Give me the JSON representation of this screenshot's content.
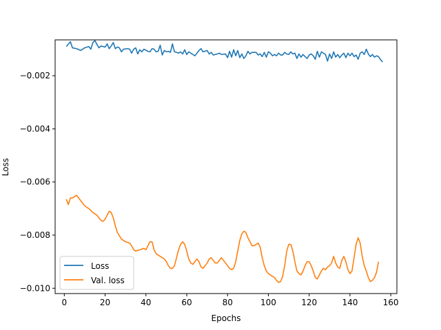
{
  "chart_data": {
    "type": "line",
    "title": "",
    "xlabel": "Epochs",
    "ylabel": "Loss",
    "xlim": [
      -4.5,
      163
    ],
    "ylim": [
      -0.0102,
      -0.00065
    ],
    "x_ticks": [
      0,
      20,
      40,
      60,
      80,
      100,
      120,
      140,
      160
    ],
    "x_tick_labels": [
      "0",
      "20",
      "40",
      "60",
      "80",
      "100",
      "120",
      "140",
      "160"
    ],
    "y_ticks": [
      -0.002,
      -0.004,
      -0.006,
      -0.008,
      -0.01
    ],
    "y_tick_labels": [
      "−0.002",
      "−0.004",
      "−0.006",
      "−0.008",
      "−0.010"
    ],
    "grid": false,
    "legend_position": "lower-left",
    "series": [
      {
        "name": "Loss",
        "color": "#1f77b4",
        "points": [
          [
            1,
            -0.0009
          ],
          [
            3,
            -0.00072
          ],
          [
            4,
            -0.00095
          ],
          [
            6,
            -0.00098
          ],
          [
            8,
            -0.00105
          ],
          [
            10,
            -0.00095
          ],
          [
            12,
            -0.0009
          ],
          [
            13,
            -0.001
          ],
          [
            14,
            -0.00075
          ],
          [
            15,
            -0.00068
          ],
          [
            16,
            -0.00082
          ],
          [
            17,
            -0.00095
          ],
          [
            18,
            -0.00088
          ],
          [
            20,
            -0.00092
          ],
          [
            21,
            -0.0008
          ],
          [
            22,
            -0.00098
          ],
          [
            23,
            -0.00088
          ],
          [
            24,
            -0.00075
          ],
          [
            25,
            -0.00098
          ],
          [
            26,
            -0.00092
          ],
          [
            27,
            -0.00095
          ],
          [
            28,
            -0.0011
          ],
          [
            29,
            -0.001
          ],
          [
            31,
            -0.00098
          ],
          [
            32,
            -0.001
          ],
          [
            33,
            -0.00115
          ],
          [
            34,
            -0.001
          ],
          [
            35,
            -0.00095
          ],
          [
            36,
            -0.00118
          ],
          [
            37,
            -0.00102
          ],
          [
            38,
            -0.0011
          ],
          [
            39,
            -0.001
          ],
          [
            41,
            -0.00108
          ],
          [
            42,
            -0.0011
          ],
          [
            43,
            -0.00098
          ],
          [
            44,
            -0.001
          ],
          [
            45,
            -0.0011
          ],
          [
            46,
            -0.00108
          ],
          [
            47,
            -0.00085
          ],
          [
            48,
            -0.00122
          ],
          [
            49,
            -0.00105
          ],
          [
            50,
            -0.0011
          ],
          [
            51,
            -0.00108
          ],
          [
            52,
            -0.00112
          ],
          [
            53,
            -0.0008
          ],
          [
            54,
            -0.0011
          ],
          [
            55,
            -0.00112
          ],
          [
            56,
            -0.00115
          ],
          [
            57,
            -0.0011
          ],
          [
            58,
            -0.00118
          ],
          [
            59,
            -0.00102
          ],
          [
            60,
            -0.0012
          ],
          [
            61,
            -0.0011
          ],
          [
            62,
            -0.00115
          ],
          [
            63,
            -0.0012
          ],
          [
            64,
            -0.00125
          ],
          [
            66,
            -0.00105
          ],
          [
            67,
            -0.00098
          ],
          [
            68,
            -0.0011
          ],
          [
            70,
            -0.00105
          ],
          [
            71,
            -0.00118
          ],
          [
            72,
            -0.00112
          ],
          [
            73,
            -0.00122
          ],
          [
            75,
            -0.00118
          ],
          [
            76,
            -0.00115
          ],
          [
            77,
            -0.0012
          ],
          [
            79,
            -0.00118
          ],
          [
            80,
            -0.00132
          ],
          [
            81,
            -0.00108
          ],
          [
            82,
            -0.0013
          ],
          [
            83,
            -0.00102
          ],
          [
            84,
            -0.00125
          ],
          [
            85,
            -0.00105
          ],
          [
            86,
            -0.00132
          ],
          [
            87,
            -0.00118
          ],
          [
            88,
            -0.00135
          ],
          [
            89,
            -0.00125
          ],
          [
            90,
            -0.00108
          ],
          [
            91,
            -0.00118
          ],
          [
            92,
            -0.00112
          ],
          [
            94,
            -0.00112
          ],
          [
            95,
            -0.00122
          ],
          [
            96,
            -0.00118
          ],
          [
            97,
            -0.00128
          ],
          [
            98,
            -0.00112
          ],
          [
            99,
            -0.0013
          ],
          [
            100,
            -0.0011
          ],
          [
            101,
            -0.00115
          ],
          [
            102,
            -0.00125
          ],
          [
            103,
            -0.0012
          ],
          [
            104,
            -0.00125
          ],
          [
            105,
            -0.00115
          ],
          [
            106,
            -0.00122
          ],
          [
            107,
            -0.00122
          ],
          [
            108,
            -0.00112
          ],
          [
            109,
            -0.00118
          ],
          [
            110,
            -0.0012
          ],
          [
            111,
            -0.0011
          ],
          [
            112,
            -0.00118
          ],
          [
            113,
            -0.00115
          ],
          [
            114,
            -0.00135
          ],
          [
            115,
            -0.00118
          ],
          [
            116,
            -0.0013
          ],
          [
            117,
            -0.0012
          ],
          [
            118,
            -0.00128
          ],
          [
            119,
            -0.00135
          ],
          [
            120,
            -0.00122
          ],
          [
            121,
            -0.00118
          ],
          [
            122,
            -0.00125
          ],
          [
            123,
            -0.00138
          ],
          [
            124,
            -0.00108
          ],
          [
            125,
            -0.0013
          ],
          [
            126,
            -0.0011
          ],
          [
            127,
            -0.00115
          ],
          [
            128,
            -0.0012
          ],
          [
            129,
            -0.00145
          ],
          [
            130,
            -0.00118
          ],
          [
            131,
            -0.00135
          ],
          [
            132,
            -0.0011
          ],
          [
            133,
            -0.0013
          ],
          [
            134,
            -0.0012
          ],
          [
            135,
            -0.00132
          ],
          [
            136,
            -0.00122
          ],
          [
            137,
            -0.00115
          ],
          [
            138,
            -0.00132
          ],
          [
            139,
            -0.00115
          ],
          [
            140,
            -0.00125
          ],
          [
            141,
            -0.00115
          ],
          [
            142,
            -0.00128
          ],
          [
            143,
            -0.00122
          ],
          [
            144,
            -0.00138
          ],
          [
            145,
            -0.00115
          ],
          [
            146,
            -0.0011
          ],
          [
            147,
            -0.0012
          ],
          [
            148,
            -0.001
          ],
          [
            149,
            -0.00118
          ],
          [
            150,
            -0.00128
          ],
          [
            151,
            -0.0012
          ],
          [
            152,
            -0.0013
          ],
          [
            153,
            -0.00125
          ],
          [
            154,
            -0.00128
          ],
          [
            155,
            -0.0014
          ],
          [
            156,
            -0.00148
          ]
        ]
      },
      {
        "name": "Val. loss",
        "color": "#ff7f0e",
        "points": [
          [
            1,
            -0.00665
          ],
          [
            2,
            -0.00685
          ],
          [
            3,
            -0.0066
          ],
          [
            4,
            -0.0066
          ],
          [
            5,
            -0.00655
          ],
          [
            6,
            -0.0065
          ],
          [
            7,
            -0.0066
          ],
          [
            8,
            -0.0067
          ],
          [
            10,
            -0.0069
          ],
          [
            12,
            -0.007
          ],
          [
            14,
            -0.00715
          ],
          [
            16,
            -0.00725
          ],
          [
            18,
            -0.00745
          ],
          [
            19,
            -0.00748
          ],
          [
            20,
            -0.0074
          ],
          [
            21,
            -0.00725
          ],
          [
            22,
            -0.0071
          ],
          [
            23,
            -0.00715
          ],
          [
            24,
            -0.00735
          ],
          [
            25,
            -0.00765
          ],
          [
            26,
            -0.0079
          ],
          [
            28,
            -0.00815
          ],
          [
            30,
            -0.00825
          ],
          [
            32,
            -0.0083
          ],
          [
            33,
            -0.0084
          ],
          [
            34,
            -0.00855
          ],
          [
            35,
            -0.0086
          ],
          [
            37,
            -0.00855
          ],
          [
            39,
            -0.0085
          ],
          [
            40,
            -0.00855
          ],
          [
            41,
            -0.0084
          ],
          [
            42,
            -0.00825
          ],
          [
            43,
            -0.00825
          ],
          [
            44,
            -0.00855
          ],
          [
            45,
            -0.0087
          ],
          [
            47,
            -0.0088
          ],
          [
            48,
            -0.00885
          ],
          [
            49,
            -0.0089
          ],
          [
            50,
            -0.009
          ],
          [
            51,
            -0.00915
          ],
          [
            52,
            -0.00925
          ],
          [
            53,
            -0.00925
          ],
          [
            54,
            -0.00915
          ],
          [
            55,
            -0.00885
          ],
          [
            56,
            -0.00855
          ],
          [
            57,
            -0.00835
          ],
          [
            58,
            -0.00825
          ],
          [
            59,
            -0.00835
          ],
          [
            60,
            -0.0086
          ],
          [
            61,
            -0.0089
          ],
          [
            62,
            -0.00905
          ],
          [
            63,
            -0.0091
          ],
          [
            64,
            -0.009
          ],
          [
            65,
            -0.0089
          ],
          [
            66,
            -0.009
          ],
          [
            67,
            -0.0092
          ],
          [
            68,
            -0.00925
          ],
          [
            69,
            -0.00915
          ],
          [
            70,
            -0.00905
          ],
          [
            71,
            -0.0089
          ],
          [
            72,
            -0.00885
          ],
          [
            73,
            -0.00895
          ],
          [
            74,
            -0.00905
          ],
          [
            75,
            -0.00905
          ],
          [
            76,
            -0.00895
          ],
          [
            77,
            -0.00885
          ],
          [
            78,
            -0.00895
          ],
          [
            79,
            -0.00905
          ],
          [
            80,
            -0.00915
          ],
          [
            81,
            -0.00925
          ],
          [
            82,
            -0.0093
          ],
          [
            83,
            -0.00925
          ],
          [
            84,
            -0.009
          ],
          [
            85,
            -0.0086
          ],
          [
            86,
            -0.0082
          ],
          [
            87,
            -0.00795
          ],
          [
            88,
            -0.00785
          ],
          [
            89,
            -0.0079
          ],
          [
            90,
            -0.0081
          ],
          [
            91,
            -0.00825
          ],
          [
            92,
            -0.0084
          ],
          [
            93,
            -0.0084
          ],
          [
            94,
            -0.00835
          ],
          [
            95,
            -0.0083
          ],
          [
            96,
            -0.00845
          ],
          [
            97,
            -0.00885
          ],
          [
            98,
            -0.00915
          ],
          [
            99,
            -0.00935
          ],
          [
            100,
            -0.00945
          ],
          [
            101,
            -0.0095
          ],
          [
            102,
            -0.00955
          ],
          [
            103,
            -0.0096
          ],
          [
            104,
            -0.0097
          ],
          [
            105,
            -0.00978
          ],
          [
            106,
            -0.00975
          ],
          [
            107,
            -0.00955
          ],
          [
            108,
            -0.00915
          ],
          [
            109,
            -0.0086
          ],
          [
            110,
            -0.00835
          ],
          [
            111,
            -0.00835
          ],
          [
            112,
            -0.0086
          ],
          [
            113,
            -0.009
          ],
          [
            114,
            -0.00935
          ],
          [
            115,
            -0.00945
          ],
          [
            116,
            -0.0095
          ],
          [
            117,
            -0.00935
          ],
          [
            118,
            -0.00915
          ],
          [
            119,
            -0.009
          ],
          [
            120,
            -0.009
          ],
          [
            121,
            -0.00915
          ],
          [
            122,
            -0.00935
          ],
          [
            123,
            -0.0096
          ],
          [
            124,
            -0.00965
          ],
          [
            125,
            -0.0095
          ],
          [
            126,
            -0.00935
          ],
          [
            127,
            -0.00925
          ],
          [
            128,
            -0.0093
          ],
          [
            129,
            -0.0092
          ],
          [
            130,
            -0.00915
          ],
          [
            131,
            -0.00905
          ],
          [
            132,
            -0.0088
          ],
          [
            133,
            -0.00905
          ],
          [
            134,
            -0.0092
          ],
          [
            135,
            -0.00925
          ],
          [
            136,
            -0.00895
          ],
          [
            137,
            -0.0088
          ],
          [
            138,
            -0.009
          ],
          [
            139,
            -0.0093
          ],
          [
            140,
            -0.00945
          ],
          [
            141,
            -0.00935
          ],
          [
            142,
            -0.00885
          ],
          [
            143,
            -0.00835
          ],
          [
            144,
            -0.0081
          ],
          [
            145,
            -0.0083
          ],
          [
            146,
            -0.0088
          ],
          [
            147,
            -0.00915
          ],
          [
            148,
            -0.00935
          ],
          [
            149,
            -0.0096
          ],
          [
            150,
            -0.00975
          ],
          [
            151,
            -0.0097
          ],
          [
            152,
            -0.0096
          ],
          [
            153,
            -0.0094
          ],
          [
            154,
            -0.009
          ]
        ]
      }
    ]
  }
}
